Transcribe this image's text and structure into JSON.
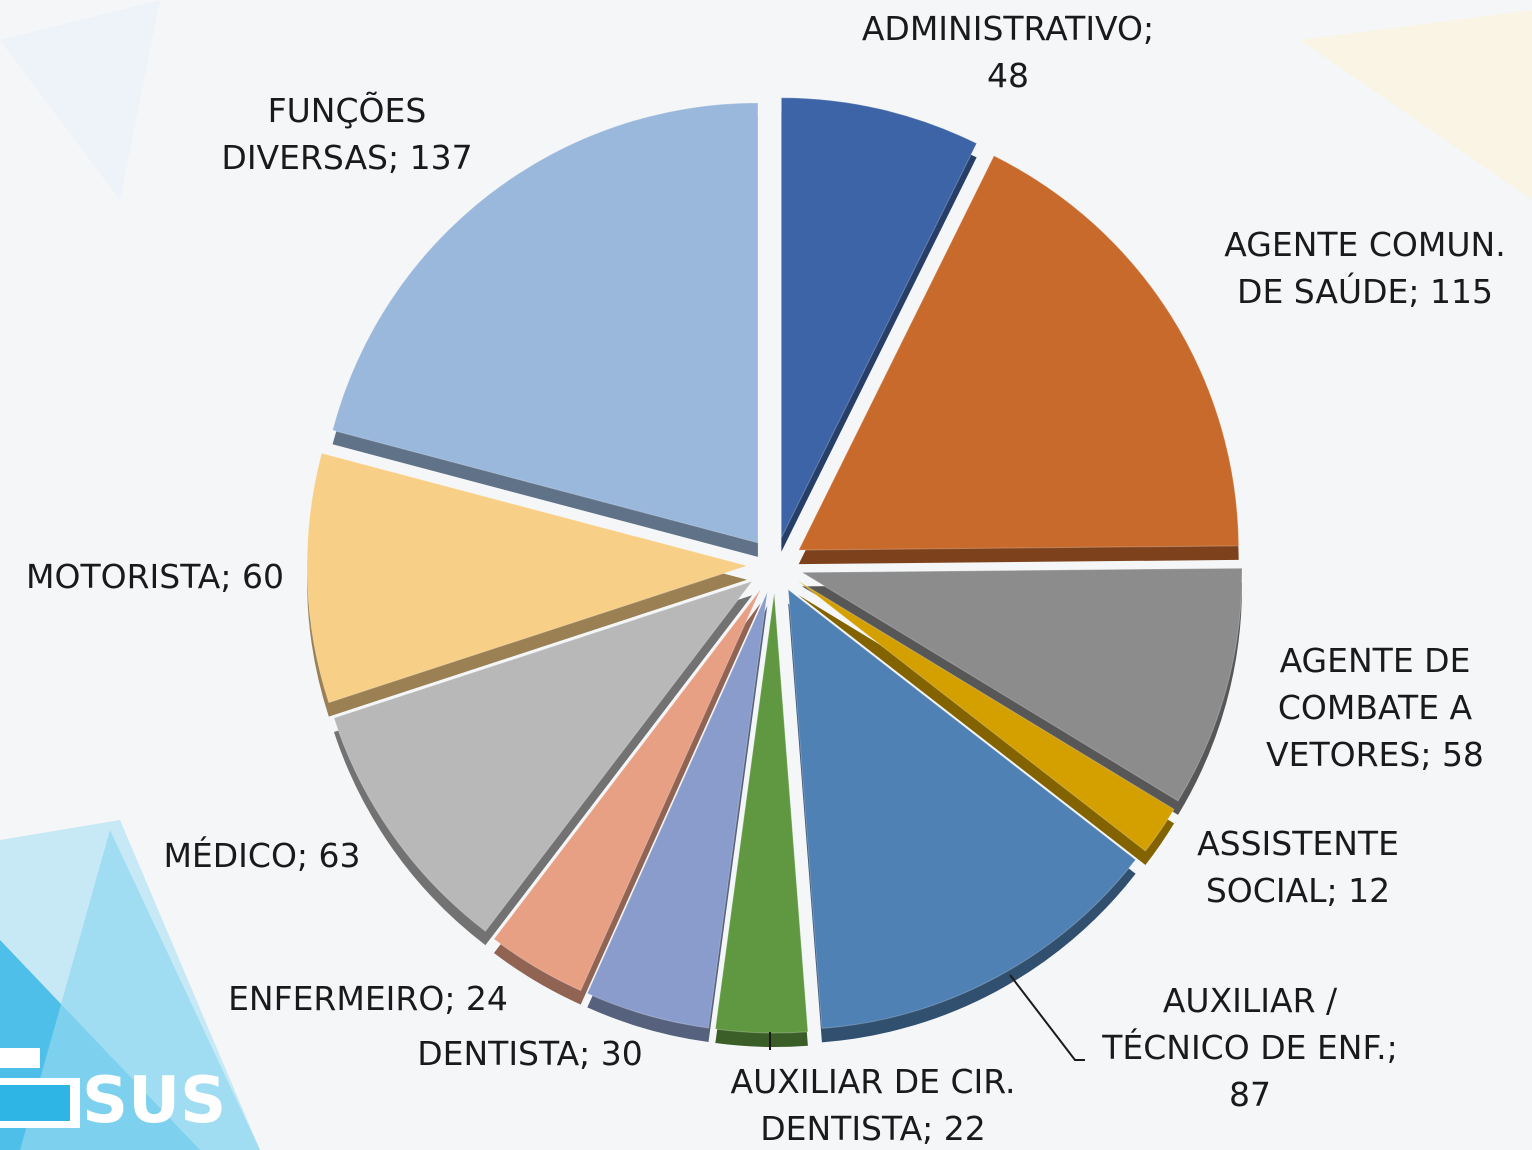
{
  "chart_data": {
    "type": "pie",
    "value_labels": [
      "ADMINISTRATIVO; 48",
      "AGENTE COMUN. DE SAÚDE; 115",
      "AGENTE DE COMBATE A VETORES; 58",
      "ASSISTENTE SOCIAL; 12",
      "AUXILIAR / TÉCNICO DE ENF.; 87",
      "AUXILIAR DE CIR. DENTISTA; 22",
      "DENTISTA; 30",
      "ENFERMEIRO; 24",
      "MÉDICO; 63",
      "MOTORISTA; 60",
      "FUNÇÕES DIVERSAS; 137"
    ],
    "values": [
      48,
      115,
      58,
      12,
      87,
      22,
      30,
      24,
      63,
      60,
      137
    ],
    "colors": [
      "#3e64a8",
      "#c96a2d",
      "#8c8c8c",
      "#d4a000",
      "#4f81b5",
      "#5f9840",
      "#8a9ccb",
      "#e8a085",
      "#b8b8b8",
      "#f8cf86",
      "#9ab8dc"
    ]
  },
  "logo": "SUS"
}
